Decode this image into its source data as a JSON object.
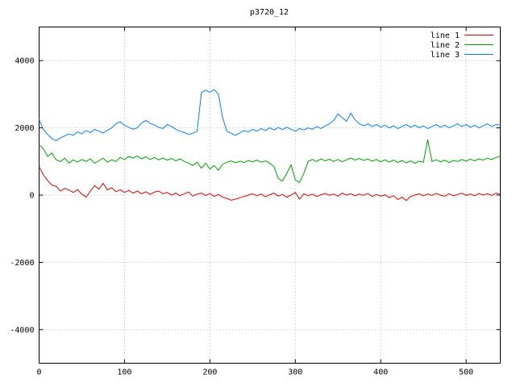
{
  "chart_data": {
    "type": "line",
    "title": "p3720_12",
    "xlabel": "",
    "ylabel": "",
    "xlim": [
      0,
      540
    ],
    "ylim": [
      -5000,
      5000
    ],
    "xticks": [
      0,
      100,
      200,
      300,
      400,
      500
    ],
    "yticks": [
      -4000,
      -2000,
      0,
      2000,
      4000
    ],
    "grid": true,
    "legend_position": "top-right",
    "x": [
      0,
      5,
      10,
      15,
      20,
      25,
      30,
      35,
      40,
      45,
      50,
      55,
      60,
      65,
      70,
      75,
      80,
      85,
      90,
      95,
      100,
      105,
      110,
      115,
      120,
      125,
      130,
      135,
      140,
      145,
      150,
      155,
      160,
      165,
      170,
      175,
      180,
      185,
      190,
      195,
      200,
      205,
      210,
      215,
      220,
      225,
      230,
      235,
      240,
      245,
      250,
      255,
      260,
      265,
      270,
      275,
      280,
      285,
      290,
      295,
      300,
      305,
      310,
      315,
      320,
      325,
      330,
      335,
      340,
      345,
      350,
      355,
      360,
      365,
      370,
      375,
      380,
      385,
      390,
      395,
      400,
      405,
      410,
      415,
      420,
      425,
      430,
      435,
      440,
      445,
      450,
      455,
      460,
      465,
      470,
      475,
      480,
      485,
      490,
      495,
      500,
      505,
      510,
      515,
      520,
      525,
      530,
      535,
      540
    ],
    "series": [
      {
        "name": "line 1",
        "color": "#e00000",
        "values": [
          850,
          600,
          430,
          300,
          260,
          120,
          200,
          150,
          80,
          160,
          30,
          -60,
          120,
          280,
          180,
          350,
          150,
          220,
          100,
          160,
          80,
          140,
          60,
          120,
          40,
          100,
          20,
          90,
          120,
          40,
          80,
          0,
          60,
          -20,
          40,
          90,
          -30,
          30,
          60,
          -10,
          50,
          -40,
          20,
          -60,
          -100,
          -150,
          -120,
          -80,
          -40,
          0,
          40,
          -20,
          30,
          -50,
          10,
          60,
          -30,
          20,
          -60,
          0,
          80,
          -120,
          40,
          -20,
          30,
          -40,
          10,
          50,
          -10,
          30,
          -30,
          60,
          0,
          40,
          -20,
          30,
          -10,
          50,
          -40,
          20,
          -30,
          10,
          -80,
          -20,
          -130,
          -60,
          -160,
          -40,
          0,
          40,
          -20,
          30,
          -10,
          50,
          0,
          -30,
          40,
          -20,
          20,
          60,
          -10,
          30,
          -20,
          50,
          0,
          40,
          -10,
          60,
          30
        ]
      },
      {
        "name": "line 2",
        "color": "#00a000",
        "values": [
          1500,
          1380,
          1150,
          1250,
          1050,
          1000,
          1100,
          950,
          1050,
          980,
          1060,
          1000,
          1080,
          950,
          1020,
          1100,
          980,
          1050,
          1000,
          1120,
          1060,
          1150,
          1100,
          1160,
          1080,
          1140,
          1060,
          1120,
          1050,
          1100,
          1040,
          1090,
          1020,
          1080,
          1000,
          950,
          880,
          980,
          800,
          950,
          780,
          880,
          740,
          920,
          980,
          1020,
          960,
          1010,
          970,
          1030,
          990,
          1040,
          980,
          1020,
          950,
          850,
          500,
          420,
          650,
          900,
          450,
          380,
          650,
          1000,
          1060,
          1000,
          1080,
          1020,
          1070,
          1000,
          1060,
          990,
          1050,
          1100,
          1040,
          1090,
          1030,
          1080,
          1010,
          1060,
          990,
          1050,
          980,
          1040,
          970,
          1030,
          960,
          1020,
          950,
          1010,
          980,
          1650,
          1000,
          1050,
          990,
          1040,
          970,
          1030,
          1000,
          1060,
          1010,
          1070,
          1020,
          1080,
          1040,
          1100,
          1060,
          1120,
          1150
        ]
      },
      {
        "name": "line 3",
        "color": "#0080ff",
        "values": [
          2250,
          1950,
          1800,
          1680,
          1620,
          1700,
          1760,
          1820,
          1780,
          1880,
          1820,
          1920,
          1860,
          1960,
          1900,
          1850,
          1930,
          2000,
          2120,
          2180,
          2080,
          2020,
          1960,
          2000,
          2150,
          2220,
          2140,
          2080,
          2020,
          1980,
          2100,
          2040,
          1960,
          1900,
          1860,
          1800,
          1840,
          1900,
          3050,
          3120,
          3060,
          3140,
          3000,
          2300,
          1900,
          1840,
          1780,
          1850,
          1920,
          1880,
          1960,
          1900,
          1980,
          1920,
          2000,
          1940,
          2010,
          1950,
          2020,
          1960,
          1900,
          1980,
          1940,
          2000,
          1960,
          2040,
          1980,
          2060,
          2120,
          2220,
          2420,
          2300,
          2200,
          2440,
          2240,
          2120,
          2060,
          2120,
          2040,
          2100,
          2020,
          2080,
          2000,
          2060,
          1980,
          2040,
          2100,
          2020,
          2080,
          2000,
          2060,
          1980,
          2040,
          2100,
          2020,
          2080,
          2000,
          2060,
          2120,
          2040,
          2100,
          2020,
          2080,
          2000,
          2060,
          2120,
          2040,
          2100,
          2080
        ]
      }
    ]
  }
}
